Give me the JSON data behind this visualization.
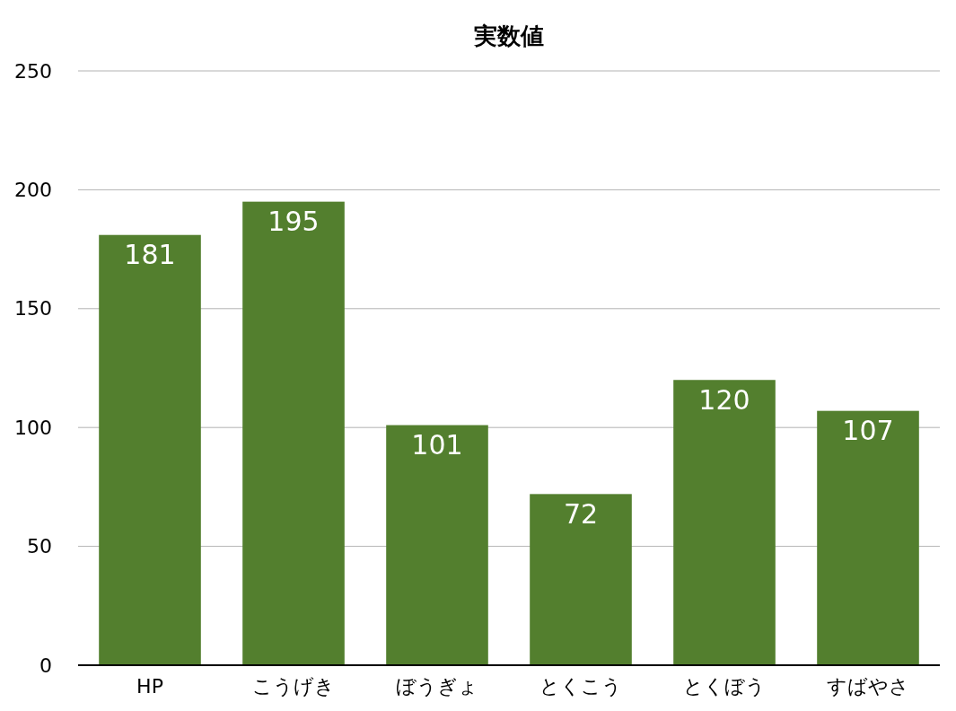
{
  "chart_data": {
    "type": "bar",
    "title": "実数値",
    "categories": [
      "HP",
      "こうげき",
      "ぼうぎょ",
      "とくこう",
      "とくぼう",
      "すばやさ"
    ],
    "values": [
      181,
      195,
      101,
      72,
      120,
      107
    ],
    "color": "#537f2e",
    "ylim": [
      0,
      250
    ],
    "yticks": [
      0,
      50,
      100,
      150,
      200,
      250
    ],
    "grid": "y",
    "data_labels": true
  }
}
